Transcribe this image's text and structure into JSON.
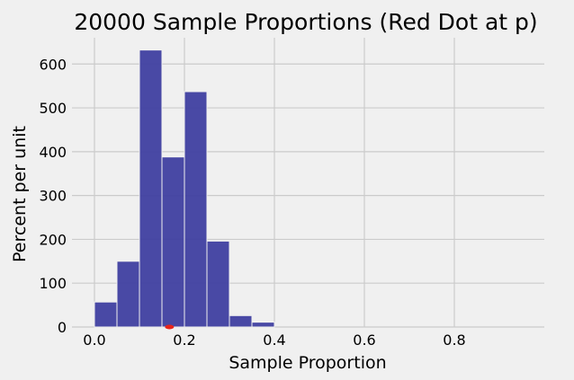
{
  "chart_data": {
    "type": "bar",
    "title": "20000 Sample Proportions (Red Dot at p)",
    "xlabel": "Sample Proportion",
    "ylabel": "Percent per unit",
    "xlim": [
      -0.05,
      1.0
    ],
    "ylim": [
      0,
      660
    ],
    "x_ticks": [
      0.0,
      0.2,
      0.4,
      0.6,
      0.8
    ],
    "x_tick_labels": [
      "0.0",
      "0.2",
      "0.4",
      "0.6",
      "0.8"
    ],
    "y_ticks": [
      0,
      100,
      200,
      300,
      400,
      500,
      600
    ],
    "y_tick_labels": [
      "0",
      "100",
      "200",
      "300",
      "400",
      "500",
      "600"
    ],
    "bin_width": 0.05,
    "bin_starts": [
      0.0,
      0.05,
      0.1,
      0.15,
      0.2,
      0.25,
      0.3,
      0.35
    ],
    "values": [
      57,
      150,
      632,
      388,
      537,
      196,
      26,
      11
    ],
    "bar_color": "#3f3fa0",
    "point": {
      "x": 0.1667,
      "y": 0,
      "color": "#e8251a"
    },
    "grid": true,
    "legend": false
  }
}
